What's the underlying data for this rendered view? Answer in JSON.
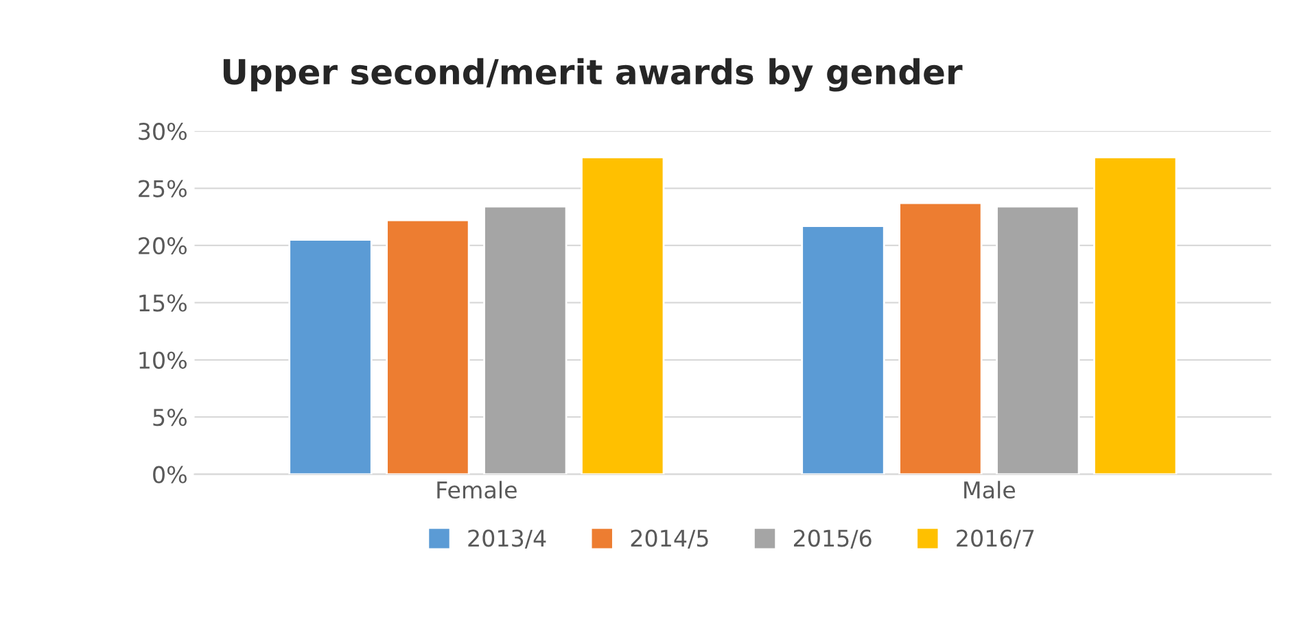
{
  "chart_data": {
    "type": "bar",
    "title": "Upper second/merit awards by gender",
    "categories": [
      "Female",
      "Male"
    ],
    "series": [
      {
        "name": "2013/4",
        "color": "#5b9bd5",
        "values": [
          20.5,
          21.7
        ]
      },
      {
        "name": "2014/5",
        "color": "#ed7d31",
        "values": [
          22.2,
          23.7
        ]
      },
      {
        "name": "2015/6",
        "color": "#a5a5a5",
        "values": [
          23.4,
          23.4
        ]
      },
      {
        "name": "2016/7",
        "color": "#ffc000",
        "values": [
          27.7,
          27.7
        ]
      }
    ],
    "ylim": [
      0,
      30
    ],
    "yticks": [
      {
        "value": 0,
        "label": "0%"
      },
      {
        "value": 5,
        "label": "5%"
      },
      {
        "value": 10,
        "label": "10%"
      },
      {
        "value": 15,
        "label": "15%"
      },
      {
        "value": 20,
        "label": "20%"
      },
      {
        "value": 25,
        "label": "25%"
      },
      {
        "value": 30,
        "label": "30%"
      }
    ],
    "grid": "y",
    "legend": "bottom"
  }
}
